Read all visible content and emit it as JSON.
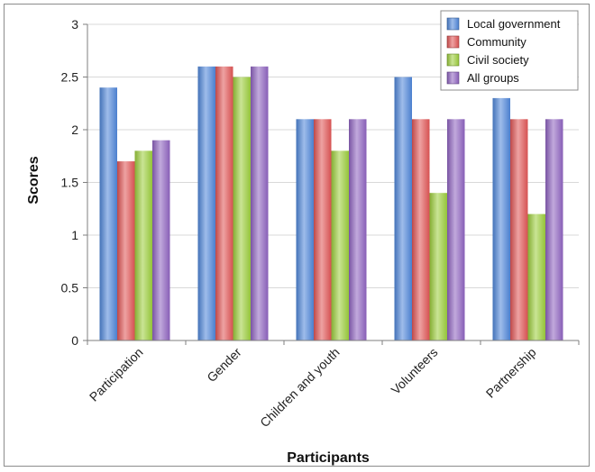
{
  "chart_data": {
    "type": "bar",
    "title": "",
    "xlabel": "Participants",
    "ylabel": "Scores",
    "ylim": [
      0,
      3
    ],
    "yticks": [
      "0",
      "0.5",
      "1",
      "1.5",
      "2",
      "2.5",
      "3"
    ],
    "grid": true,
    "legend_position": "top-right",
    "categories": [
      "Participation",
      "Gender",
      "Children and youth",
      "Volunteers",
      "Partnership"
    ],
    "series": [
      {
        "name": "Local government",
        "color": "#4f86d9",
        "values": [
          2.4,
          2.6,
          2.1,
          2.5,
          2.3
        ]
      },
      {
        "name": "Community",
        "color": "#e05555",
        "values": [
          1.7,
          2.6,
          2.1,
          2.1,
          2.1
        ]
      },
      {
        "name": "Civil society",
        "color": "#9ccd3c",
        "values": [
          1.8,
          2.5,
          1.8,
          1.4,
          1.2
        ]
      },
      {
        "name": "All groups",
        "color": "#8e63c0",
        "values": [
          1.9,
          2.6,
          2.1,
          2.1,
          2.1
        ]
      }
    ]
  }
}
